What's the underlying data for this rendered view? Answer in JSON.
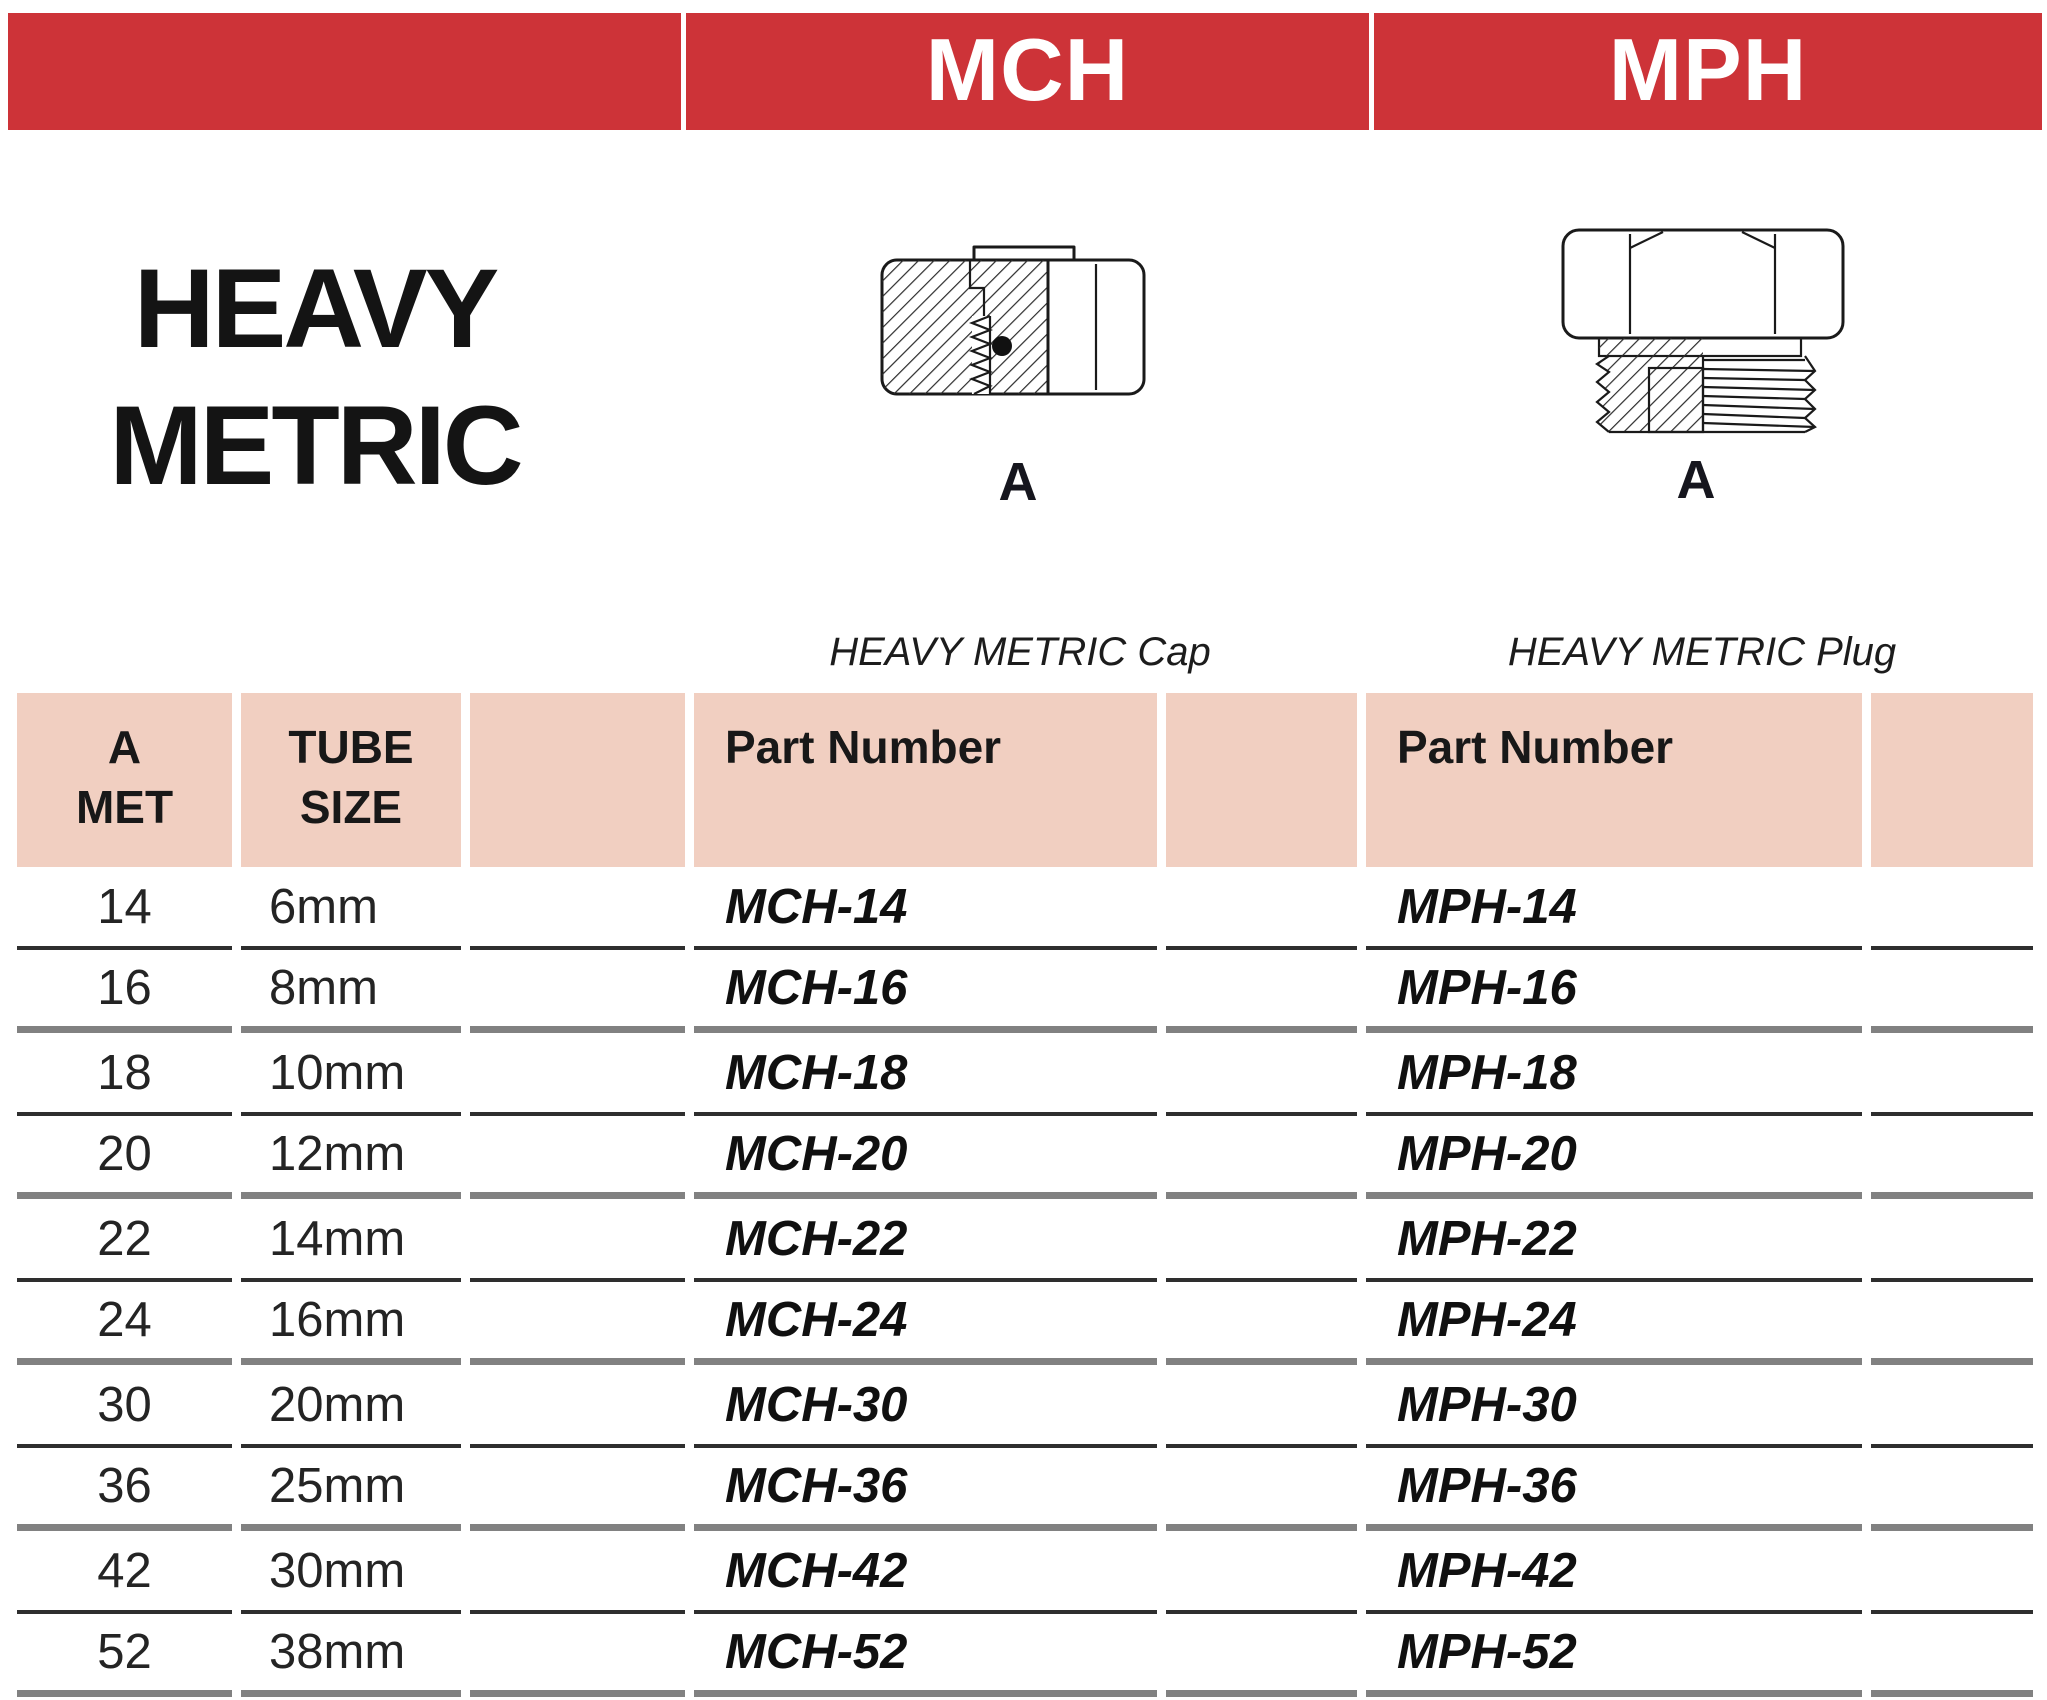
{
  "colors": {
    "accent_red": "#cd3338",
    "header_pink": "#f1cfc1"
  },
  "header_bar": {
    "mch_label": "MCH",
    "mph_label": "MPH"
  },
  "title": {
    "line1": "HEAVY",
    "line2": "METRIC"
  },
  "figures": {
    "cap": {
      "label": "A",
      "caption": "HEAVY METRIC Cap",
      "icon": "cap-fitting-drawing"
    },
    "plug": {
      "label": "A",
      "caption": "HEAVY METRIC Plug",
      "icon": "plug-fitting-drawing"
    }
  },
  "table": {
    "headers": {
      "col1_line1": "A",
      "col1_line2": "MET",
      "col2_line1": "TUBE",
      "col2_line2": "SIZE",
      "mch_part": "Part Number",
      "mph_part": "Part Number"
    },
    "rows": [
      {
        "a_met": "14",
        "tube_size": "6mm",
        "mch_part": "MCH-14",
        "mph_part": "MPH-14",
        "sep": "thin"
      },
      {
        "a_met": "16",
        "tube_size": "8mm",
        "mch_part": "MCH-16",
        "mph_part": "MPH-16",
        "sep": "thick"
      },
      {
        "a_met": "18",
        "tube_size": "10mm",
        "mch_part": "MCH-18",
        "mph_part": "MPH-18",
        "sep": "thin"
      },
      {
        "a_met": "20",
        "tube_size": "12mm",
        "mch_part": "MCH-20",
        "mph_part": "MPH-20",
        "sep": "thick"
      },
      {
        "a_met": "22",
        "tube_size": "14mm",
        "mch_part": "MCH-22",
        "mph_part": "MPH-22",
        "sep": "thin"
      },
      {
        "a_met": "24",
        "tube_size": "16mm",
        "mch_part": "MCH-24",
        "mph_part": "MPH-24",
        "sep": "thick"
      },
      {
        "a_met": "30",
        "tube_size": "20mm",
        "mch_part": "MCH-30",
        "mph_part": "MPH-30",
        "sep": "thin"
      },
      {
        "a_met": "36",
        "tube_size": "25mm",
        "mch_part": "MCH-36",
        "mph_part": "MPH-36",
        "sep": "thick"
      },
      {
        "a_met": "42",
        "tube_size": "30mm",
        "mch_part": "MCH-42",
        "mph_part": "MPH-42",
        "sep": "thin"
      },
      {
        "a_met": "52",
        "tube_size": "38mm",
        "mch_part": "MCH-52",
        "mph_part": "MPH-52",
        "sep": "thick"
      }
    ]
  }
}
